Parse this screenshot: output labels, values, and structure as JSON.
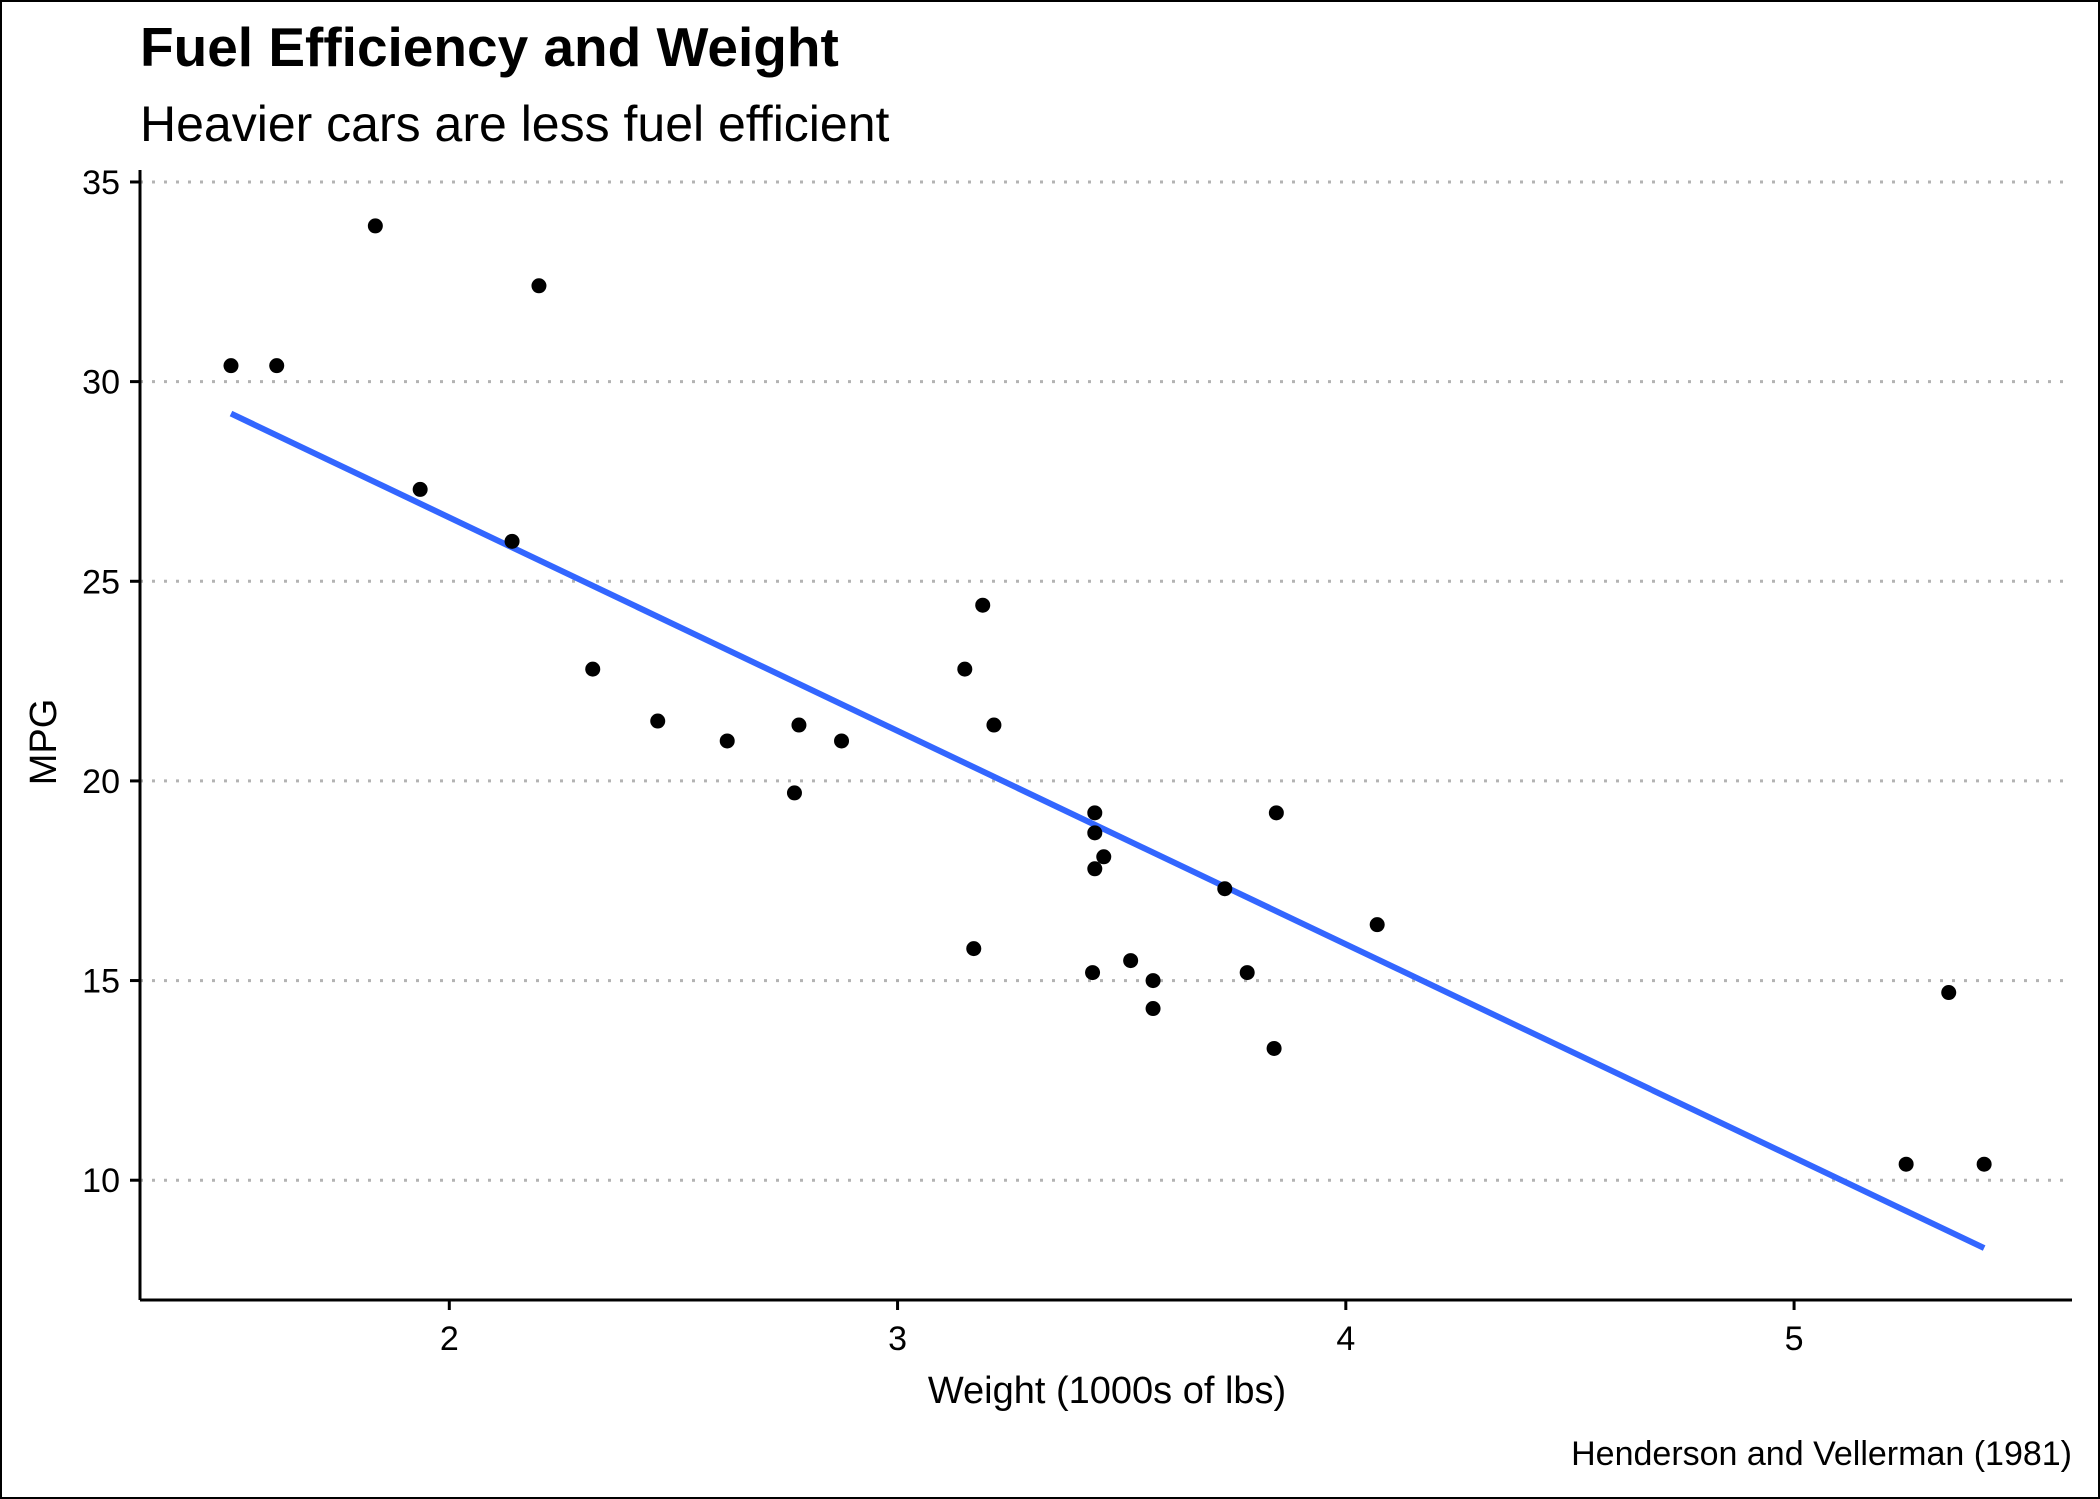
{
  "chart_data": {
    "type": "scatter",
    "title": "Fuel Efficiency and Weight",
    "subtitle": "Heavier cars are less fuel efficient",
    "xlabel": "Weight (1000s of lbs)",
    "ylabel": "MPG",
    "caption": "Henderson and Vellerman (1981)",
    "xlim": [
      1.31,
      5.62
    ],
    "ylim": [
      7.0,
      35.3
    ],
    "x_ticks": [
      2,
      3,
      4,
      5
    ],
    "y_ticks": [
      10,
      15,
      20,
      25,
      30,
      35
    ],
    "grid": "horizontal-dotted",
    "point_color": "#000000",
    "line_color": "#3366FF",
    "points": [
      {
        "x": 2.62,
        "y": 21.0
      },
      {
        "x": 2.875,
        "y": 21.0
      },
      {
        "x": 2.32,
        "y": 22.8
      },
      {
        "x": 3.215,
        "y": 21.4
      },
      {
        "x": 3.44,
        "y": 18.7
      },
      {
        "x": 3.46,
        "y": 18.1
      },
      {
        "x": 3.57,
        "y": 14.3
      },
      {
        "x": 3.19,
        "y": 24.4
      },
      {
        "x": 3.15,
        "y": 22.8
      },
      {
        "x": 3.44,
        "y": 19.2
      },
      {
        "x": 3.44,
        "y": 17.8
      },
      {
        "x": 4.07,
        "y": 16.4
      },
      {
        "x": 3.73,
        "y": 17.3
      },
      {
        "x": 3.78,
        "y": 15.2
      },
      {
        "x": 5.25,
        "y": 10.4
      },
      {
        "x": 5.424,
        "y": 10.4
      },
      {
        "x": 5.345,
        "y": 14.7
      },
      {
        "x": 2.2,
        "y": 32.4
      },
      {
        "x": 1.615,
        "y": 30.4
      },
      {
        "x": 1.835,
        "y": 33.9
      },
      {
        "x": 2.465,
        "y": 21.5
      },
      {
        "x": 3.52,
        "y": 15.5
      },
      {
        "x": 3.435,
        "y": 15.2
      },
      {
        "x": 3.84,
        "y": 13.3
      },
      {
        "x": 3.845,
        "y": 19.2
      },
      {
        "x": 1.935,
        "y": 27.3
      },
      {
        "x": 2.14,
        "y": 26.0
      },
      {
        "x": 1.513,
        "y": 30.4
      },
      {
        "x": 3.17,
        "y": 15.8
      },
      {
        "x": 2.77,
        "y": 19.7
      },
      {
        "x": 3.57,
        "y": 15.0
      },
      {
        "x": 2.78,
        "y": 21.4
      }
    ],
    "fit_line": {
      "x": [
        1.513,
        5.424
      ],
      "y": [
        29.2,
        8.3
      ]
    }
  }
}
